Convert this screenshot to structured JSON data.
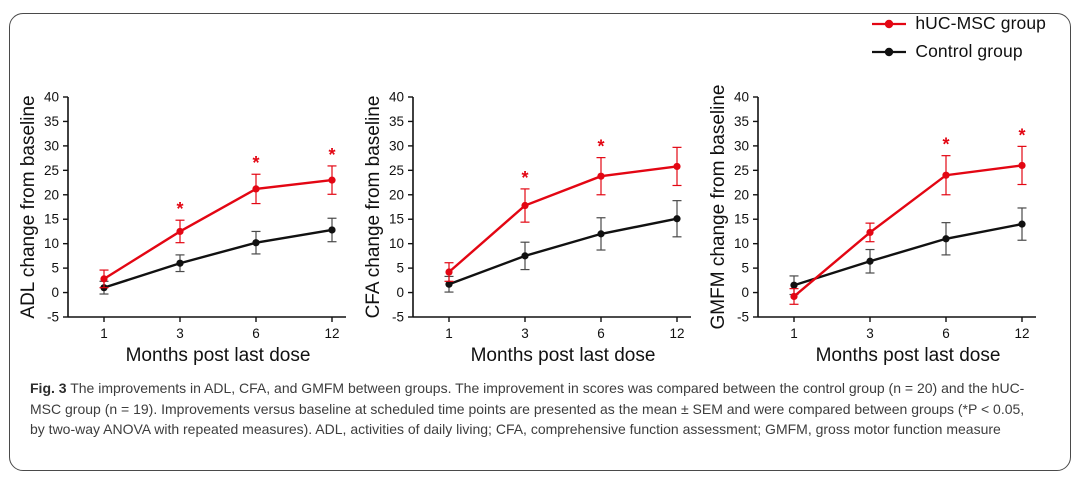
{
  "figure": {
    "caption_label": "Fig. 3",
    "caption_text": " The improvements in ADL, CFA, and GMFM between groups. The improvement in scores was compared between the control group (n = 20) and the hUC-MSC group (n = 19). Improvements versus baseline at scheduled time points are presented as the mean ± SEM and were compared between groups (*P < 0.05, by two-way ANOVA with repeated measures). ADL, activities of daily living; CFA, comprehensive function assessment; GMFM, gross motor function measure"
  },
  "legend": {
    "position": "top-right",
    "items": [
      {
        "label": "hUC-MSC group",
        "color": "#e30613"
      },
      {
        "label": "Control group",
        "color": "#111111"
      }
    ]
  },
  "colors": {
    "axis": "#111111",
    "huc_msc": "#e30613",
    "control": "#111111",
    "control_error": "#4a4a4a",
    "border": "#4a4a4a"
  },
  "chart_data": [
    {
      "type": "line",
      "title": "",
      "xlabel": "Months post last dose",
      "ylabel": "ADL change from baseline",
      "x_ticks": [
        "1",
        "3",
        "6",
        "12"
      ],
      "ylim": [
        -5,
        40
      ],
      "y_tick_step": 5,
      "grid": false,
      "error_bars": "SEM",
      "series": [
        {
          "name": "hUC-MSC group",
          "color": "#e30613",
          "sem_color": "#e30613",
          "values": [
            2.8,
            12.5,
            21.2,
            23.0
          ],
          "sem": [
            1.8,
            2.3,
            3.0,
            2.9
          ],
          "significant": [
            false,
            true,
            true,
            true
          ]
        },
        {
          "name": "Control group",
          "color": "#111111",
          "sem_color": "#4a4a4a",
          "values": [
            1.0,
            6.0,
            10.2,
            12.8
          ],
          "sem": [
            1.3,
            1.7,
            2.3,
            2.4
          ],
          "significant": [
            false,
            false,
            false,
            false
          ]
        }
      ]
    },
    {
      "type": "line",
      "title": "",
      "xlabel": "Months post last dose",
      "ylabel": "CFA change from baseline",
      "x_ticks": [
        "1",
        "3",
        "6",
        "12"
      ],
      "ylim": [
        -5,
        40
      ],
      "y_tick_step": 5,
      "grid": false,
      "error_bars": "SEM",
      "series": [
        {
          "name": "hUC-MSC group",
          "color": "#e30613",
          "sem_color": "#e30613",
          "values": [
            4.2,
            17.8,
            23.8,
            25.8
          ],
          "sem": [
            1.9,
            3.4,
            3.8,
            3.9
          ],
          "significant": [
            false,
            true,
            true,
            false
          ]
        },
        {
          "name": "Control group",
          "color": "#111111",
          "sem_color": "#4a4a4a",
          "values": [
            1.7,
            7.5,
            12.0,
            15.1
          ],
          "sem": [
            1.6,
            2.8,
            3.3,
            3.7
          ],
          "significant": [
            false,
            false,
            false,
            false
          ]
        }
      ]
    },
    {
      "type": "line",
      "title": "",
      "xlabel": "Months post last dose",
      "ylabel": "GMFM change from baseline",
      "x_ticks": [
        "1",
        "3",
        "6",
        "12"
      ],
      "ylim": [
        -5,
        40
      ],
      "y_tick_step": 5,
      "grid": false,
      "error_bars": "SEM",
      "series": [
        {
          "name": "hUC-MSC group",
          "color": "#e30613",
          "sem_color": "#e30613",
          "values": [
            -0.8,
            12.3,
            24.0,
            26.0
          ],
          "sem": [
            1.6,
            1.9,
            4.0,
            3.9
          ],
          "significant": [
            false,
            false,
            true,
            true
          ]
        },
        {
          "name": "Control group",
          "color": "#111111",
          "sem_color": "#4a4a4a",
          "values": [
            1.5,
            6.4,
            11.0,
            14.0
          ],
          "sem": [
            1.9,
            2.4,
            3.3,
            3.3
          ],
          "significant": [
            false,
            false,
            false,
            false
          ]
        }
      ]
    }
  ]
}
